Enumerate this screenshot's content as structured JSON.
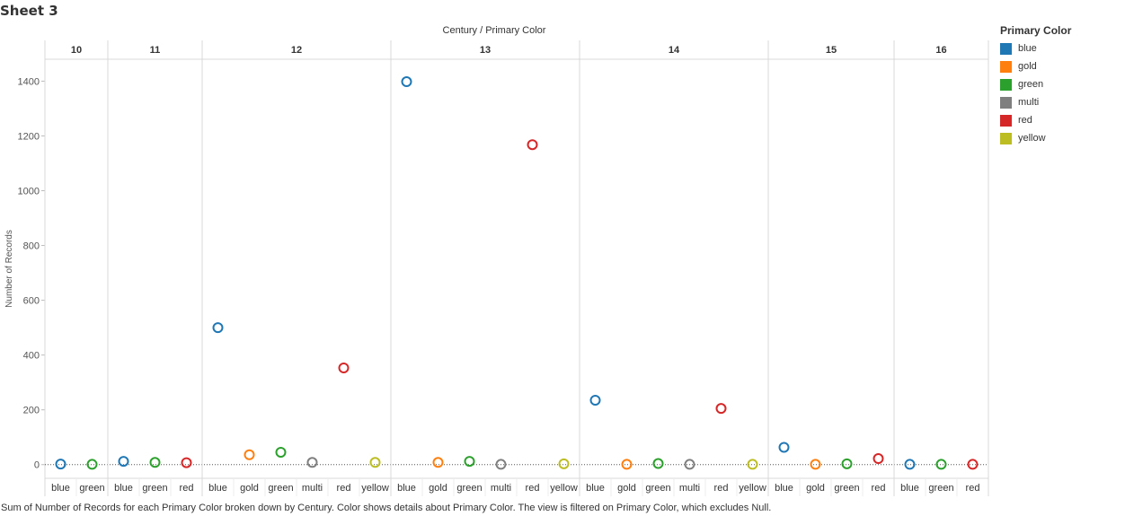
{
  "sheet": {
    "title": "Sheet 3",
    "column_header": "Century  /  Primary Color",
    "caption": "Sum of Number of Records for each Primary Color broken down by Century.  Color shows details about Primary Color. The view is filtered on Primary Color, which excludes Null."
  },
  "colors": {
    "blue": "#1f77b4",
    "gold": "#ff7f0e",
    "green": "#2ca02c",
    "multi": "#7f7f7f",
    "red": "#d62728",
    "yellow": "#bcbd22"
  },
  "legend": {
    "title": "Primary Color",
    "items": [
      {
        "label": "blue",
        "key": "blue"
      },
      {
        "label": "gold",
        "key": "gold"
      },
      {
        "label": "green",
        "key": "green"
      },
      {
        "label": "multi",
        "key": "multi"
      },
      {
        "label": "red",
        "key": "red"
      },
      {
        "label": "yellow",
        "key": "yellow"
      }
    ]
  },
  "chart_data": {
    "type": "scatter",
    "ylabel": "Number of Records",
    "ylim": [
      -50,
      1480
    ],
    "yticks": [
      0,
      200,
      400,
      600,
      800,
      1000,
      1200,
      1400
    ],
    "panels": [
      {
        "century": "10",
        "points": [
          {
            "color": "blue",
            "value": 2
          },
          {
            "color": "green",
            "value": 1
          }
        ]
      },
      {
        "century": "11",
        "points": [
          {
            "color": "blue",
            "value": 12
          },
          {
            "color": "green",
            "value": 8
          },
          {
            "color": "red",
            "value": 7
          }
        ]
      },
      {
        "century": "12",
        "points": [
          {
            "color": "blue",
            "value": 500
          },
          {
            "color": "gold",
            "value": 36
          },
          {
            "color": "green",
            "value": 45
          },
          {
            "color": "multi",
            "value": 8
          },
          {
            "color": "red",
            "value": 353
          },
          {
            "color": "yellow",
            "value": 8
          }
        ]
      },
      {
        "century": "13",
        "points": [
          {
            "color": "blue",
            "value": 1398
          },
          {
            "color": "gold",
            "value": 8
          },
          {
            "color": "green",
            "value": 12
          },
          {
            "color": "multi",
            "value": 1
          },
          {
            "color": "red",
            "value": 1168
          },
          {
            "color": "yellow",
            "value": 3
          }
        ]
      },
      {
        "century": "14",
        "points": [
          {
            "color": "blue",
            "value": 235
          },
          {
            "color": "gold",
            "value": 1
          },
          {
            "color": "green",
            "value": 4
          },
          {
            "color": "multi",
            "value": 1
          },
          {
            "color": "red",
            "value": 205
          },
          {
            "color": "yellow",
            "value": 1
          }
        ]
      },
      {
        "century": "15",
        "points": [
          {
            "color": "blue",
            "value": 63
          },
          {
            "color": "gold",
            "value": 1
          },
          {
            "color": "green",
            "value": 3
          },
          {
            "color": "red",
            "value": 22
          }
        ]
      },
      {
        "century": "16",
        "points": [
          {
            "color": "blue",
            "value": 1
          },
          {
            "color": "green",
            "value": 1
          },
          {
            "color": "red",
            "value": 1
          }
        ]
      }
    ]
  }
}
